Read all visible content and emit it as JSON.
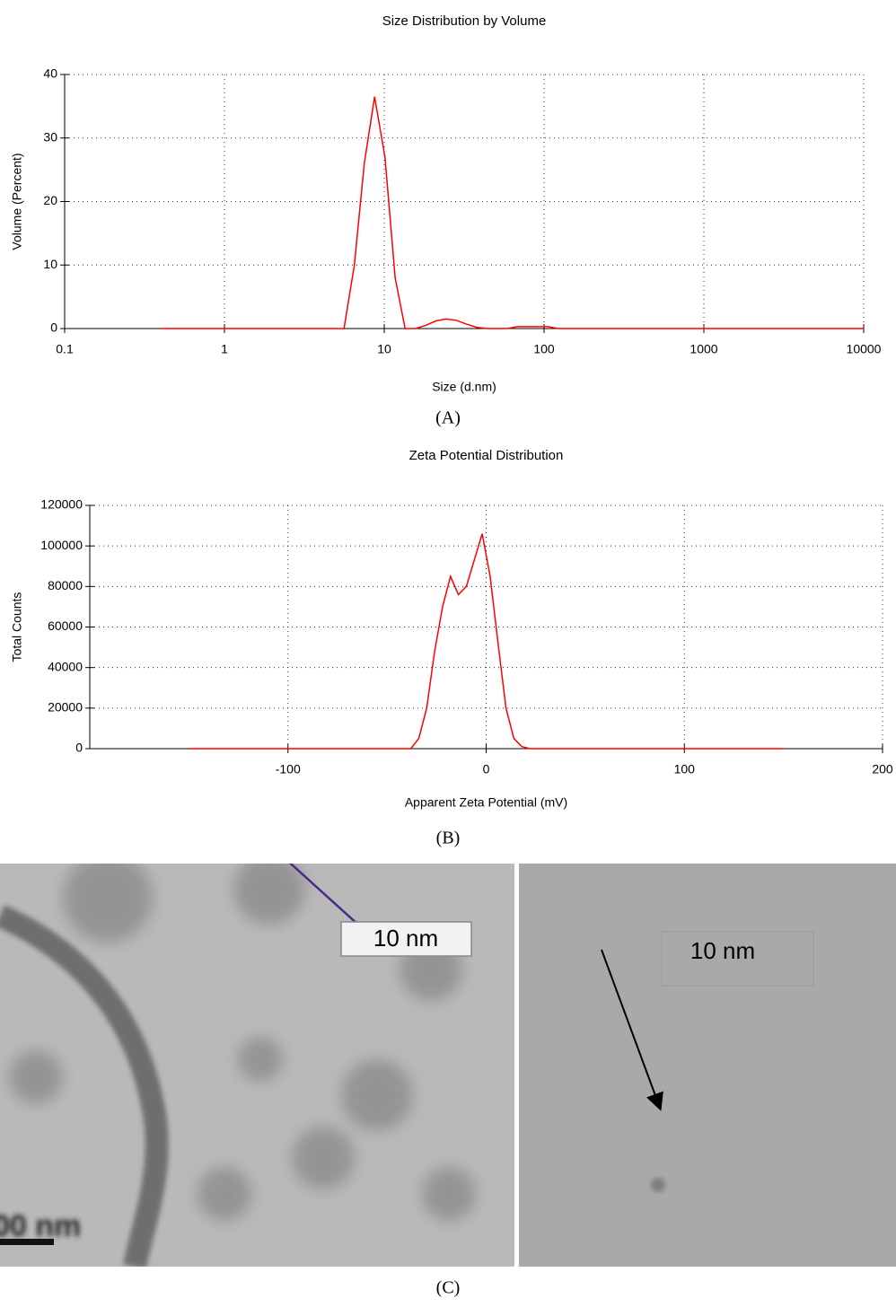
{
  "chart_data": [
    {
      "type": "line",
      "title": "Size Distribution by Volume",
      "xlabel": "Size (d.nm)",
      "ylabel": "Volume (Percent)",
      "xscale": "log",
      "xlim": [
        0.1,
        10000
      ],
      "xticks": [
        0.1,
        1,
        10,
        100,
        1000,
        10000
      ],
      "ylim": [
        0,
        40
      ],
      "yticks": [
        0,
        10,
        20,
        30,
        40
      ],
      "grid": true,
      "x": [
        0.4,
        5.6,
        6.5,
        7.5,
        8.7,
        10.1,
        11.7,
        13.5,
        15.7,
        18.2,
        21,
        24.4,
        28.2,
        32.7,
        37.8,
        43.8,
        58.8,
        68,
        78.8,
        91.3,
        105.7,
        122,
        10000
      ],
      "series": [
        {
          "color": "#ff0000",
          "values": [
            0,
            0,
            10,
            26,
            36.5,
            27,
            8,
            0,
            0,
            0.5,
            1.2,
            1.5,
            1.3,
            0.7,
            0.2,
            0,
            0,
            0.3,
            0.3,
            0.3,
            0.3,
            0,
            0
          ]
        }
      ]
    },
    {
      "type": "line",
      "title": "Zeta Potential Distribution",
      "xlabel": "Apparent Zeta Potential (mV)",
      "ylabel": "Total Counts",
      "xscale": "linear",
      "xlim": [
        -200,
        200
      ],
      "xticks": [
        -100,
        0,
        100,
        200
      ],
      "ylim": [
        0,
        120000
      ],
      "yticks": [
        0,
        20000,
        40000,
        60000,
        80000,
        100000,
        120000
      ],
      "grid": true,
      "x": [
        -150,
        -38,
        -34,
        -30,
        -26,
        -22,
        -18,
        -14,
        -10,
        -6,
        -2,
        2,
        6,
        10,
        14,
        18,
        22,
        150
      ],
      "series": [
        {
          "color": "#ff0000",
          "values": [
            0,
            0,
            5000,
            20000,
            48000,
            70000,
            85000,
            76000,
            80000,
            93000,
            106000,
            85000,
            52000,
            20000,
            5000,
            1000,
            0,
            0
          ]
        }
      ]
    }
  ],
  "panel_labels": [
    "(A)",
    "(B)",
    "(C)"
  ],
  "images": {
    "left_label": "10 nm",
    "left_scale": "00 nm",
    "right_label": "10 nm"
  }
}
